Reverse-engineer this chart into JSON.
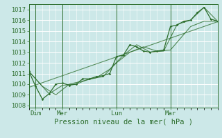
{
  "xlabel": "Pression niveau de la mer( hPa )",
  "bg_color": "#cce8e8",
  "grid_color": "#ffffff",
  "line_color": "#2d6e2d",
  "ylim": [
    1007.8,
    1017.5
  ],
  "xlim": [
    0,
    28
  ],
  "yticks": [
    1008,
    1009,
    1010,
    1011,
    1012,
    1013,
    1014,
    1015,
    1016,
    1017
  ],
  "xtick_positions": [
    1,
    5,
    13,
    21
  ],
  "xtick_labels": [
    "Dim",
    "Mer",
    "Lun",
    "Mar"
  ],
  "vline_positions": [
    1,
    5,
    13,
    21
  ],
  "series1": [
    [
      0,
      1011.2
    ],
    [
      1,
      1009.8
    ],
    [
      2,
      1008.6
    ],
    [
      3,
      1009.1
    ],
    [
      4,
      1010.0
    ],
    [
      5,
      1010.1
    ],
    [
      6,
      1009.9
    ],
    [
      7,
      1010.0
    ],
    [
      8,
      1010.5
    ],
    [
      9,
      1010.5
    ],
    [
      10,
      1010.7
    ],
    [
      11,
      1010.8
    ],
    [
      12,
      1011.0
    ],
    [
      13,
      1012.6
    ],
    [
      14,
      1012.7
    ],
    [
      15,
      1013.7
    ],
    [
      16,
      1013.5
    ],
    [
      17,
      1013.1
    ],
    [
      18,
      1013.0
    ],
    [
      19,
      1013.1
    ],
    [
      20,
      1013.2
    ],
    [
      21,
      1015.4
    ],
    [
      22,
      1015.55
    ],
    [
      23,
      1015.9
    ],
    [
      24,
      1016.0
    ],
    [
      25,
      1016.7
    ],
    [
      26,
      1017.2
    ],
    [
      27,
      1016.1
    ],
    [
      28,
      1015.9
    ]
  ],
  "series2": [
    [
      0,
      1011.2
    ],
    [
      3,
      1009.1
    ],
    [
      5,
      1009.9
    ],
    [
      7,
      1010.0
    ],
    [
      9,
      1010.5
    ],
    [
      11,
      1010.7
    ],
    [
      13,
      1012.0
    ],
    [
      15,
      1013.0
    ],
    [
      17,
      1013.5
    ],
    [
      19,
      1013.1
    ],
    [
      21,
      1013.2
    ],
    [
      24,
      1015.4
    ],
    [
      26,
      1015.9
    ],
    [
      28,
      1015.9
    ]
  ],
  "series3": [
    [
      0,
      1011.2
    ],
    [
      2,
      1009.8
    ],
    [
      4,
      1009.0
    ],
    [
      6,
      1010.0
    ],
    [
      8,
      1010.3
    ],
    [
      10,
      1010.6
    ],
    [
      12,
      1011.4
    ],
    [
      14,
      1012.7
    ],
    [
      16,
      1013.7
    ],
    [
      18,
      1013.0
    ],
    [
      20,
      1013.1
    ],
    [
      22,
      1015.6
    ],
    [
      24,
      1016.0
    ],
    [
      26,
      1017.2
    ],
    [
      28,
      1015.9
    ]
  ],
  "trend_line": [
    [
      0,
      1009.7
    ],
    [
      28,
      1015.85
    ]
  ]
}
